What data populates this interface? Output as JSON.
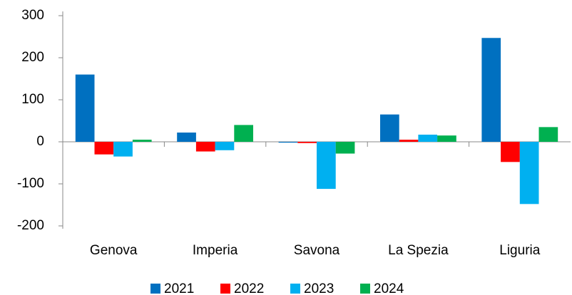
{
  "chart_data": {
    "type": "bar",
    "categories": [
      "Genova",
      "Imperia",
      "Savona",
      "La Spezia",
      "Liguria"
    ],
    "series": [
      {
        "name": "2021",
        "color": "#0070c0",
        "values": [
          160,
          22,
          -2,
          65,
          247
        ]
      },
      {
        "name": "2022",
        "color": "#ff0000",
        "values": [
          -30,
          -23,
          -3,
          5,
          -48
        ]
      },
      {
        "name": "2023",
        "color": "#00b0f0",
        "values": [
          -35,
          -20,
          -112,
          17,
          -148
        ]
      },
      {
        "name": "2024",
        "color": "#00b050",
        "values": [
          5,
          40,
          -28,
          15,
          35
        ]
      }
    ],
    "ylim": [
      -200,
      300
    ],
    "yticks": [
      -200,
      -100,
      0,
      100,
      200,
      300
    ],
    "grid": false
  }
}
